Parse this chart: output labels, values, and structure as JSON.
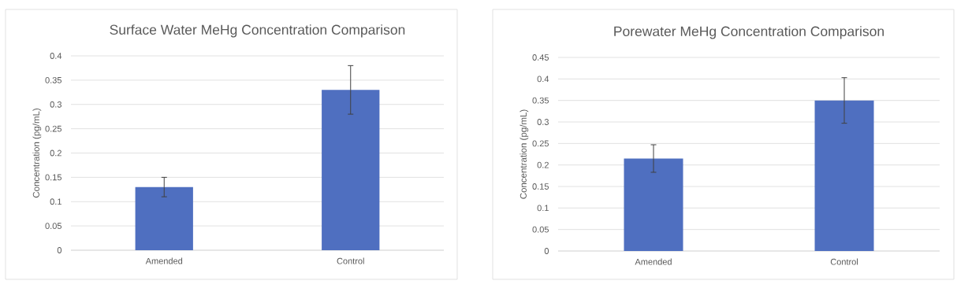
{
  "chart_data": [
    {
      "type": "bar",
      "title": "Surface Water MeHg Concentration Comparison",
      "ylabel": "Concentration (pg/mL)",
      "categories": [
        "Amended",
        "Control"
      ],
      "values": [
        0.13,
        0.33
      ],
      "errors": [
        0.02,
        0.05
      ],
      "color": "#4f6fc0",
      "ylim": [
        0,
        0.4
      ],
      "yticks": [
        0,
        0.05,
        0.1,
        0.15,
        0.2,
        0.25,
        0.3,
        0.35,
        0.4
      ],
      "grid": "y"
    },
    {
      "type": "bar",
      "title": "Porewater MeHg Concentration Comparison",
      "ylabel": "Concentration (pg/mL)",
      "categories": [
        "Amended",
        "Control"
      ],
      "values": [
        0.215,
        0.35
      ],
      "errors": [
        0.032,
        0.053
      ],
      "color": "#4f6fc0",
      "ylim": [
        0,
        0.45
      ],
      "yticks": [
        0,
        0.05,
        0.1,
        0.15,
        0.2,
        0.25,
        0.3,
        0.35,
        0.4,
        0.45
      ],
      "grid": "y"
    }
  ]
}
